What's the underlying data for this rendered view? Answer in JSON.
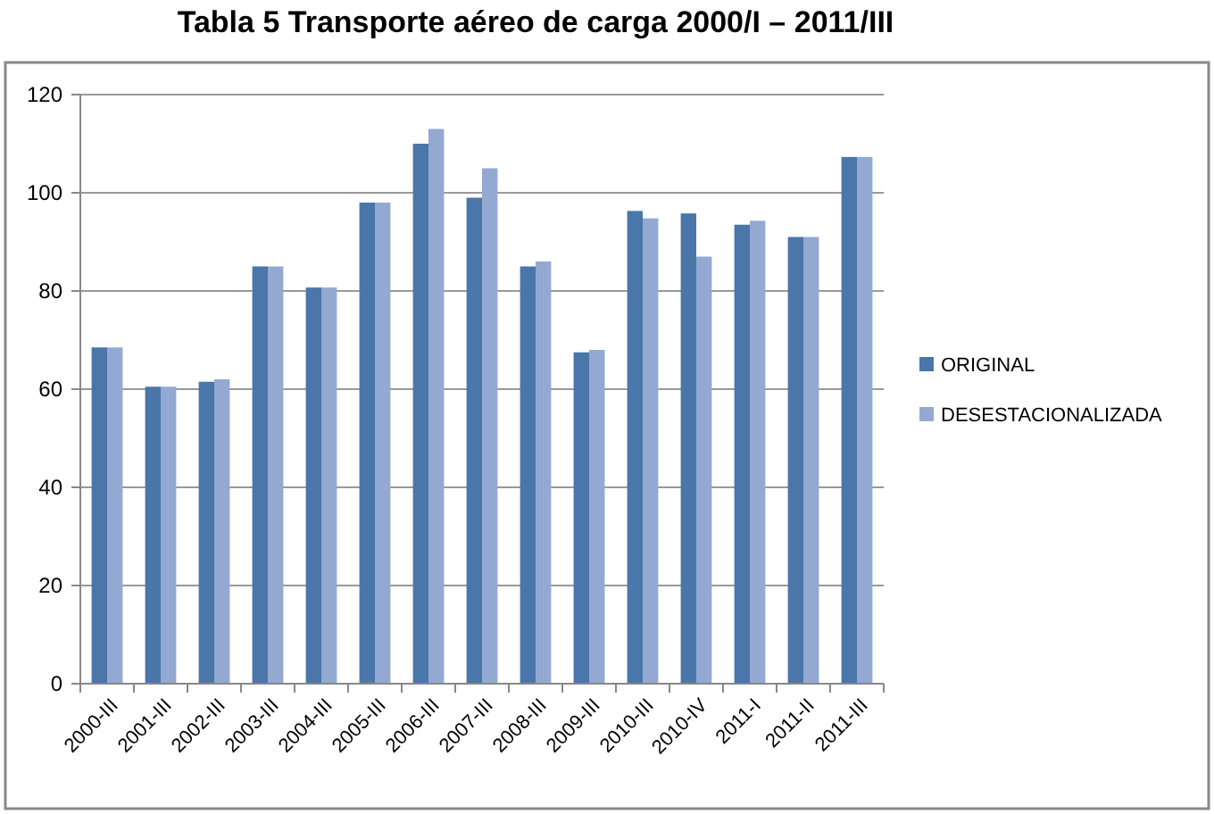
{
  "chart_data": {
    "type": "bar",
    "title": "Tabla 5 Transporte aéreo de carga 2000/I – 2011/III",
    "categories": [
      "2000-III",
      "2001-III",
      "2002-III",
      "2003-III",
      "2004-III",
      "2005-III",
      "2006-III",
      "2007-III",
      "2008-III",
      "2009-III",
      "2010-III",
      "2010-IV",
      "2011-I",
      "2011-II",
      "2011-III"
    ],
    "series": [
      {
        "name": "ORIGINAL",
        "color": "#4a76aa",
        "values": [
          68.5,
          60.5,
          61.5,
          85,
          80.7,
          98,
          110,
          99,
          85,
          67.5,
          96.3,
          95.8,
          93.5,
          91,
          107.3
        ]
      },
      {
        "name": "DESESTACIONALIZADA",
        "color": "#93a9d1",
        "values": [
          68.5,
          60.5,
          62,
          85,
          80.7,
          98,
          113,
          105,
          86,
          68,
          94.8,
          87,
          94.3,
          91,
          107.3
        ]
      }
    ],
    "ylim": [
      0,
      120
    ],
    "yticks": [
      0,
      20,
      40,
      60,
      80,
      100,
      120
    ],
    "grid": "y",
    "legend": "right"
  }
}
